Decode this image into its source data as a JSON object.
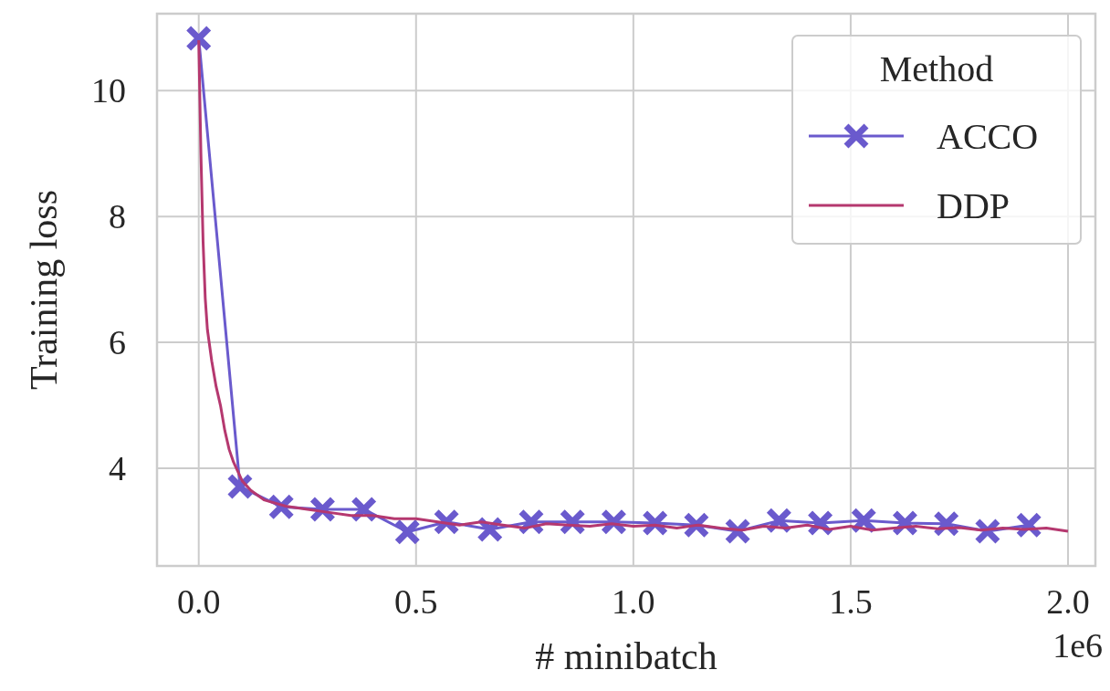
{
  "chart_data": {
    "type": "line",
    "xlabel": "# minibatch",
    "ylabel": "Training loss",
    "legend_title": "Method",
    "legend": "top right",
    "grid": true,
    "xlim": [
      -0.096,
      2.063
    ],
    "ylim": [
      2.45,
      11.22
    ],
    "xticks": [
      {
        "value": 0,
        "label": "0.0"
      },
      0.5,
      {
        "value": 1,
        "label": "1.0"
      },
      1.5,
      {
        "value": 2,
        "label": "2.0"
      }
    ],
    "yticks": [
      4,
      6,
      8,
      10
    ],
    "annotations": [
      "1e6"
    ],
    "series": [
      {
        "name": "ACCO",
        "color": "#6a5acd",
        "marker": "cross",
        "x": [
          0,
          0.095,
          0.19,
          0.285,
          0.38,
          0.48,
          0.57,
          0.67,
          0.765,
          0.86,
          0.955,
          1.05,
          1.145,
          1.24,
          1.335,
          1.43,
          1.53,
          1.625,
          1.72,
          1.815,
          1.91
        ],
        "values": [
          10.83,
          3.71,
          3.39,
          3.35,
          3.35,
          2.99,
          3.15,
          3.03,
          3.15,
          3.15,
          3.15,
          3.13,
          3.1,
          3.0,
          3.17,
          3.13,
          3.17,
          3.13,
          3.12,
          3.0,
          3.1
        ]
      },
      {
        "name": "DDP",
        "color": "#b5386f",
        "marker": "none",
        "x": [
          0,
          0.005,
          0.01,
          0.015,
          0.02,
          0.03,
          0.04,
          0.05,
          0.06,
          0.07,
          0.08,
          0.1,
          0.12,
          0.15,
          0.2,
          0.25,
          0.3,
          0.35,
          0.4,
          0.45,
          0.5,
          0.55,
          0.6,
          0.65,
          0.7,
          0.75,
          0.8,
          0.85,
          0.9,
          0.95,
          1.0,
          1.05,
          1.1,
          1.15,
          1.2,
          1.25,
          1.3,
          1.35,
          1.4,
          1.45,
          1.5,
          1.55,
          1.6,
          1.65,
          1.7,
          1.75,
          1.8,
          1.85,
          1.9,
          1.95,
          2.0
        ],
        "values": [
          10.8,
          9.0,
          7.6,
          6.7,
          6.2,
          5.7,
          5.3,
          5.0,
          4.6,
          4.3,
          4.1,
          3.8,
          3.65,
          3.5,
          3.4,
          3.35,
          3.3,
          3.25,
          3.25,
          3.2,
          3.2,
          3.15,
          3.1,
          3.15,
          3.1,
          3.05,
          3.12,
          3.1,
          3.08,
          3.12,
          3.08,
          3.1,
          3.05,
          3.1,
          3.05,
          3.02,
          3.08,
          3.05,
          3.1,
          3.03,
          3.08,
          3.02,
          3.05,
          3.08,
          3.04,
          3.06,
          3.02,
          3.05,
          3.03,
          3.05,
          3.0
        ]
      }
    ]
  }
}
